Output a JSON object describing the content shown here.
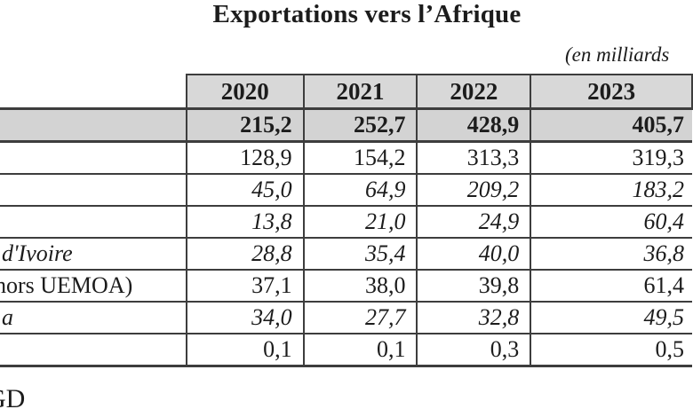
{
  "title": "Exportations vers l’Afrique",
  "unit_note": "(en milliards",
  "source_note": "GD",
  "colors": {
    "header_bg": "#d8d8d8",
    "total_row_bg": "#d3d3d3",
    "border": "#3d3d3d",
    "text": "#1c1c1c",
    "background": "#ffffff"
  },
  "table": {
    "year_headers": [
      "2020",
      "2021",
      "2022",
      "2023"
    ],
    "rows": [
      {
        "label": "",
        "emphasis": "bold-total",
        "values": [
          "215,2",
          "252,7",
          "428,9",
          "405,7"
        ]
      },
      {
        "label": "",
        "emphasis": "normal",
        "values": [
          "128,9",
          "154,2",
          "313,3",
          "319,3"
        ]
      },
      {
        "label": "",
        "emphasis": "italic",
        "values": [
          "45,0",
          "64,9",
          "209,2",
          "183,2"
        ]
      },
      {
        "label": "",
        "emphasis": "italic",
        "values": [
          "13,8",
          "21,0",
          "24,9",
          "60,4"
        ]
      },
      {
        "label": "d'Ivoire",
        "emphasis": "italic",
        "values": [
          "28,8",
          "35,4",
          "40,0",
          "36,8"
        ]
      },
      {
        "label": "hors UEMOA)",
        "emphasis": "normal",
        "values": [
          "37,1",
          "38,0",
          "39,8",
          "61,4"
        ]
      },
      {
        "label": "a",
        "emphasis": "italic",
        "values": [
          "34,0",
          "27,7",
          "32,8",
          "49,5"
        ]
      },
      {
        "label": "",
        "emphasis": "normal",
        "values": [
          "0,1",
          "0,1",
          "0,3",
          "0,5"
        ]
      }
    ]
  }
}
